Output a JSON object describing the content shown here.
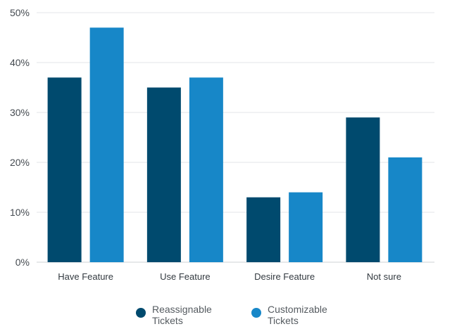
{
  "chart_data": {
    "type": "bar",
    "categories": [
      "Have Feature",
      "Use Feature",
      "Desire Feature",
      "Not sure"
    ],
    "series": [
      {
        "name": "Reassignable Tickets",
        "values": [
          37,
          35,
          13,
          29
        ],
        "color": "#004a6e"
      },
      {
        "name": "Customizable Tickets",
        "values": [
          47,
          37,
          14,
          21
        ],
        "color": "#1787c8"
      }
    ],
    "y_ticks": [
      "0%",
      "10%",
      "20%",
      "30%",
      "40%",
      "50%"
    ],
    "ylim": [
      0,
      50
    ],
    "y_unit": "%",
    "grid": true,
    "legend_position": "bottom-center"
  }
}
